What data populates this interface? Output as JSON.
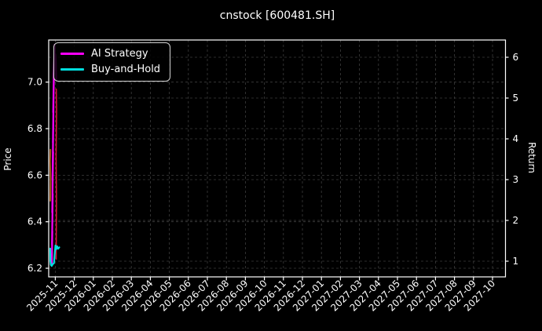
{
  "chart": {
    "title": "cnstock [600481.SH]",
    "ylabel_left": "Price",
    "ylabel_right": "Return",
    "legend": [
      {
        "label": "AI Strategy",
        "color": "#ff00ff"
      },
      {
        "label": "Buy-and-Hold",
        "color": "#00dede"
      }
    ]
  },
  "chart_data": {
    "type": "line",
    "title": "cnstock [600481.SH]",
    "xlabel": "",
    "ylabel_left": "Price",
    "ylabel_right": "Return",
    "background_color": "#000000",
    "text_color": "#ffffff",
    "spine_color": "#ffffff",
    "grid": true,
    "grid_color": "#3d3d3d",
    "legend_position": "upper left",
    "x_unit": "months_from_2025-11",
    "x_tick_labels": [
      "2025-11",
      "2025-12",
      "2026-01",
      "2026-02",
      "2026-03",
      "2026-04",
      "2026-05",
      "2026-06",
      "2026-07",
      "2026-08",
      "2026-09",
      "2026-10",
      "2026-11",
      "2026-12",
      "2027-01",
      "2027-02",
      "2027-03",
      "2027-04",
      "2027-05",
      "2027-06",
      "2027-07",
      "2027-08",
      "2027-09",
      "2027-10"
    ],
    "left_axis": {
      "label": "Price",
      "ticks": [
        6.2,
        6.4,
        6.6,
        6.8,
        7.0
      ],
      "tick_labels": [
        "6.2",
        "6.4",
        "6.6",
        "6.8",
        "7.0"
      ],
      "range": [
        6.163,
        7.181
      ]
    },
    "right_axis": {
      "label": "Return",
      "ticks": [
        1,
        2,
        3,
        4,
        5,
        6
      ],
      "tick_labels": [
        "1",
        "2",
        "3",
        "4",
        "5",
        "6"
      ],
      "range": [
        0.615,
        6.423
      ]
    },
    "accent_traces": [
      {
        "name": "price-trace-orange",
        "color": "#a05a1e",
        "width": 2.0,
        "points": [
          [
            -0.27,
            6.49
          ],
          [
            -0.25,
            6.58
          ],
          [
            -0.275,
            6.66
          ],
          [
            -0.255,
            6.71
          ]
        ]
      },
      {
        "name": "price-trace-red",
        "color": "#dc143c",
        "width": 1.6,
        "points": [
          [
            0.045,
            6.24
          ],
          [
            0.06,
            6.5
          ],
          [
            0.04,
            6.68
          ],
          [
            0.065,
            6.88
          ],
          [
            0.05,
            6.97
          ]
        ]
      }
    ],
    "series": [
      {
        "name": "AI Strategy",
        "color": "#ff00ff",
        "width": 2.2,
        "axis": "left",
        "points": [
          [
            -0.2,
            6.26
          ],
          [
            -0.18,
            6.22
          ],
          [
            -0.155,
            6.36
          ],
          [
            -0.175,
            6.3
          ],
          [
            -0.135,
            6.52
          ],
          [
            -0.16,
            6.44
          ],
          [
            -0.115,
            6.7
          ],
          [
            -0.145,
            6.58
          ],
          [
            -0.095,
            6.9
          ],
          [
            -0.125,
            6.74
          ],
          [
            -0.075,
            7.04
          ],
          [
            -0.11,
            6.87
          ],
          [
            -0.055,
            7.12
          ],
          [
            -0.09,
            6.96
          ],
          [
            -0.035,
            7.16
          ],
          [
            -0.07,
            7.03
          ],
          [
            -0.015,
            7.15
          ],
          [
            -0.045,
            7.06
          ],
          [
            0.005,
            7.12
          ],
          [
            0.03,
            7.09
          ],
          [
            0.05,
            7.01
          ]
        ]
      },
      {
        "name": "Buy-and-Hold",
        "color": "#00dede",
        "width": 2.2,
        "axis": "left",
        "points": [
          [
            -0.27,
            6.285
          ],
          [
            -0.26,
            6.235
          ],
          [
            -0.235,
            6.215
          ],
          [
            -0.19,
            6.21
          ],
          [
            -0.13,
            6.218
          ],
          [
            -0.07,
            6.222
          ],
          [
            -0.03,
            6.262
          ],
          [
            0.01,
            6.298
          ],
          [
            0.05,
            6.282
          ],
          [
            0.1,
            6.294
          ],
          [
            0.15,
            6.284
          ],
          [
            0.21,
            6.29
          ]
        ]
      }
    ]
  }
}
